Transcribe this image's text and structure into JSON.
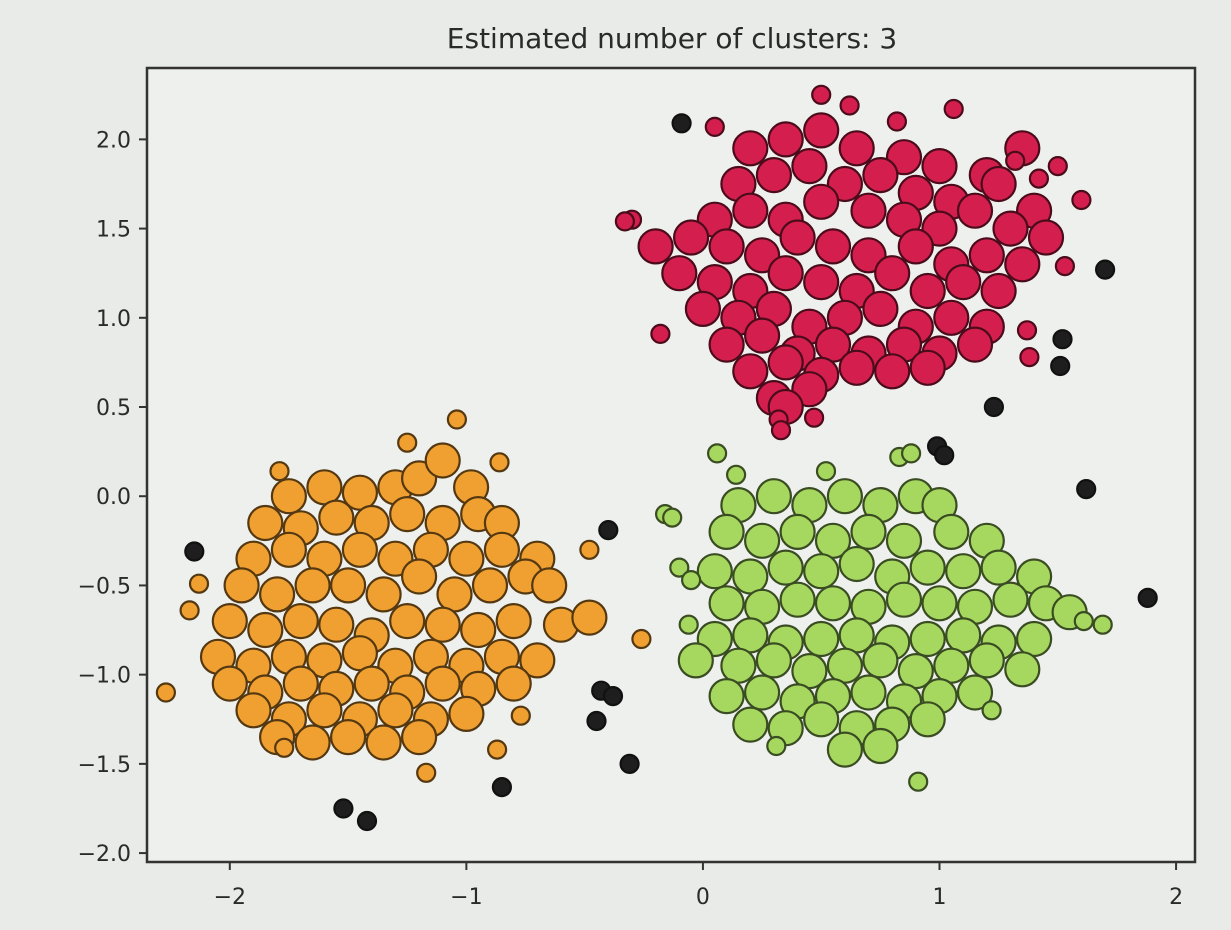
{
  "chart_data": {
    "type": "scatter",
    "title": "Estimated number of clusters: 3",
    "xlabel": "",
    "ylabel": "",
    "xlim": [
      -2.35,
      2.08
    ],
    "ylim": [
      -2.05,
      2.4
    ],
    "grid": false,
    "x_ticks": [
      -2,
      -1,
      0,
      1,
      2
    ],
    "x_tick_labels": [
      "−2",
      "−1",
      "0",
      "1",
      "2"
    ],
    "y_ticks": [
      -2.0,
      -1.5,
      -1.0,
      -0.5,
      0.0,
      0.5,
      1.0,
      1.5,
      2.0
    ],
    "y_tick_labels": [
      "−2.0",
      "−1.5",
      "−1.0",
      "−0.5",
      "0.0",
      "0.5",
      "1.0",
      "1.5",
      "2.0"
    ],
    "series": [
      {
        "color": "#d41f4e",
        "marker_size": "large",
        "points": [
          [
            0.2,
            1.95
          ],
          [
            0.35,
            2.0
          ],
          [
            0.5,
            2.05
          ],
          [
            0.65,
            1.95
          ],
          [
            0.85,
            1.9
          ],
          [
            1.0,
            1.85
          ],
          [
            1.2,
            1.8
          ],
          [
            1.35,
            1.95
          ],
          [
            0.15,
            1.75
          ],
          [
            0.3,
            1.8
          ],
          [
            0.45,
            1.85
          ],
          [
            0.6,
            1.75
          ],
          [
            0.75,
            1.8
          ],
          [
            0.9,
            1.7
          ],
          [
            1.05,
            1.65
          ],
          [
            1.25,
            1.75
          ],
          [
            1.4,
            1.6
          ],
          [
            0.05,
            1.55
          ],
          [
            0.2,
            1.6
          ],
          [
            0.35,
            1.55
          ],
          [
            0.5,
            1.65
          ],
          [
            0.7,
            1.6
          ],
          [
            0.85,
            1.55
          ],
          [
            1.0,
            1.5
          ],
          [
            1.15,
            1.6
          ],
          [
            1.3,
            1.5
          ],
          [
            1.45,
            1.45
          ],
          [
            -0.2,
            1.4
          ],
          [
            -0.05,
            1.45
          ],
          [
            0.1,
            1.4
          ],
          [
            0.25,
            1.35
          ],
          [
            0.4,
            1.45
          ],
          [
            0.55,
            1.4
          ],
          [
            0.7,
            1.35
          ],
          [
            0.9,
            1.4
          ],
          [
            1.05,
            1.3
          ],
          [
            1.2,
            1.35
          ],
          [
            1.35,
            1.3
          ],
          [
            -0.1,
            1.25
          ],
          [
            0.05,
            1.2
          ],
          [
            0.2,
            1.15
          ],
          [
            0.35,
            1.25
          ],
          [
            0.5,
            1.2
          ],
          [
            0.65,
            1.15
          ],
          [
            0.8,
            1.25
          ],
          [
            0.95,
            1.15
          ],
          [
            1.1,
            1.2
          ],
          [
            1.25,
            1.15
          ],
          [
            0.0,
            1.05
          ],
          [
            0.15,
            1.0
          ],
          [
            0.3,
            1.05
          ],
          [
            0.45,
            0.95
          ],
          [
            0.6,
            1.0
          ],
          [
            0.75,
            1.05
          ],
          [
            0.9,
            0.95
          ],
          [
            1.05,
            1.0
          ],
          [
            1.2,
            0.95
          ],
          [
            0.1,
            0.85
          ],
          [
            0.25,
            0.9
          ],
          [
            0.4,
            0.8
          ],
          [
            0.55,
            0.85
          ],
          [
            0.7,
            0.8
          ],
          [
            0.85,
            0.85
          ],
          [
            1.0,
            0.8
          ],
          [
            1.15,
            0.85
          ],
          [
            0.2,
            0.7
          ],
          [
            0.35,
            0.75
          ],
          [
            0.5,
            0.68
          ],
          [
            0.65,
            0.72
          ],
          [
            0.8,
            0.7
          ],
          [
            0.95,
            0.72
          ],
          [
            0.3,
            0.55
          ],
          [
            0.45,
            0.6
          ],
          [
            0.35,
            0.5
          ]
        ]
      },
      {
        "color": "#d41f4e",
        "marker_size": "small",
        "points": [
          [
            0.05,
            2.07
          ],
          [
            0.5,
            2.25
          ],
          [
            0.62,
            2.19
          ],
          [
            0.82,
            2.1
          ],
          [
            1.06,
            2.17
          ],
          [
            1.32,
            1.88
          ],
          [
            1.5,
            1.85
          ],
          [
            1.42,
            1.78
          ],
          [
            -0.3,
            1.55
          ],
          [
            -0.33,
            1.54
          ],
          [
            1.6,
            1.66
          ],
          [
            1.53,
            1.29
          ],
          [
            -0.18,
            0.91
          ],
          [
            1.37,
            0.93
          ],
          [
            1.38,
            0.78
          ],
          [
            0.47,
            0.44
          ],
          [
            0.32,
            0.43
          ],
          [
            0.33,
            0.37
          ]
        ]
      },
      {
        "color": "#f0a030",
        "marker_size": "large",
        "points": [
          [
            -1.75,
            0.0
          ],
          [
            -1.6,
            0.05
          ],
          [
            -1.45,
            0.02
          ],
          [
            -1.3,
            0.05
          ],
          [
            -1.2,
            0.1
          ],
          [
            -1.1,
            0.2
          ],
          [
            -0.98,
            0.05
          ],
          [
            -1.85,
            -0.15
          ],
          [
            -1.7,
            -0.18
          ],
          [
            -1.55,
            -0.12
          ],
          [
            -1.4,
            -0.15
          ],
          [
            -1.25,
            -0.1
          ],
          [
            -1.1,
            -0.15
          ],
          [
            -0.95,
            -0.1
          ],
          [
            -0.85,
            -0.15
          ],
          [
            -1.9,
            -0.35
          ],
          [
            -1.75,
            -0.3
          ],
          [
            -1.6,
            -0.35
          ],
          [
            -1.45,
            -0.3
          ],
          [
            -1.3,
            -0.35
          ],
          [
            -1.15,
            -0.3
          ],
          [
            -1.0,
            -0.35
          ],
          [
            -0.85,
            -0.3
          ],
          [
            -0.7,
            -0.35
          ],
          [
            -1.95,
            -0.5
          ],
          [
            -1.8,
            -0.55
          ],
          [
            -1.65,
            -0.5
          ],
          [
            -1.5,
            -0.5
          ],
          [
            -1.35,
            -0.55
          ],
          [
            -1.2,
            -0.45
          ],
          [
            -1.05,
            -0.55
          ],
          [
            -0.9,
            -0.5
          ],
          [
            -0.75,
            -0.45
          ],
          [
            -0.65,
            -0.5
          ],
          [
            -2.0,
            -0.7
          ],
          [
            -1.85,
            -0.75
          ],
          [
            -1.7,
            -0.7
          ],
          [
            -1.55,
            -0.72
          ],
          [
            -1.4,
            -0.78
          ],
          [
            -1.25,
            -0.7
          ],
          [
            -1.1,
            -0.72
          ],
          [
            -0.95,
            -0.75
          ],
          [
            -0.8,
            -0.7
          ],
          [
            -0.6,
            -0.72
          ],
          [
            -0.48,
            -0.68
          ],
          [
            -2.05,
            -0.9
          ],
          [
            -1.9,
            -0.95
          ],
          [
            -1.75,
            -0.9
          ],
          [
            -1.6,
            -0.92
          ],
          [
            -1.45,
            -0.88
          ],
          [
            -1.3,
            -0.95
          ],
          [
            -1.15,
            -0.9
          ],
          [
            -1.0,
            -0.95
          ],
          [
            -0.85,
            -0.9
          ],
          [
            -0.7,
            -0.92
          ],
          [
            -2.0,
            -1.05
          ],
          [
            -1.85,
            -1.1
          ],
          [
            -1.7,
            -1.05
          ],
          [
            -1.55,
            -1.08
          ],
          [
            -1.4,
            -1.05
          ],
          [
            -1.25,
            -1.1
          ],
          [
            -1.1,
            -1.05
          ],
          [
            -0.95,
            -1.08
          ],
          [
            -0.8,
            -1.05
          ],
          [
            -1.9,
            -1.2
          ],
          [
            -1.75,
            -1.25
          ],
          [
            -1.6,
            -1.2
          ],
          [
            -1.45,
            -1.25
          ],
          [
            -1.3,
            -1.2
          ],
          [
            -1.15,
            -1.25
          ],
          [
            -1.0,
            -1.22
          ],
          [
            -1.8,
            -1.35
          ],
          [
            -1.65,
            -1.38
          ],
          [
            -1.5,
            -1.35
          ],
          [
            -1.35,
            -1.38
          ],
          [
            -1.2,
            -1.35
          ]
        ]
      },
      {
        "color": "#f0a030",
        "marker_size": "small",
        "points": [
          [
            -1.79,
            0.14
          ],
          [
            -1.04,
            0.43
          ],
          [
            -1.25,
            0.3
          ],
          [
            -0.86,
            0.19
          ],
          [
            -0.48,
            -0.3
          ],
          [
            -2.13,
            -0.49
          ],
          [
            -2.17,
            -0.64
          ],
          [
            -0.26,
            -0.8
          ],
          [
            -2.27,
            -1.1
          ],
          [
            -0.77,
            -1.23
          ],
          [
            -1.77,
            -1.41
          ],
          [
            -0.87,
            -1.42
          ],
          [
            -1.17,
            -1.55
          ]
        ]
      },
      {
        "color": "#a6d860",
        "marker_size": "large",
        "points": [
          [
            0.15,
            -0.05
          ],
          [
            0.3,
            0.0
          ],
          [
            0.45,
            -0.05
          ],
          [
            0.6,
            0.0
          ],
          [
            0.75,
            -0.05
          ],
          [
            0.9,
            0.0
          ],
          [
            1.0,
            -0.05
          ],
          [
            0.1,
            -0.2
          ],
          [
            0.25,
            -0.25
          ],
          [
            0.4,
            -0.2
          ],
          [
            0.55,
            -0.25
          ],
          [
            0.7,
            -0.2
          ],
          [
            0.85,
            -0.25
          ],
          [
            1.05,
            -0.2
          ],
          [
            1.2,
            -0.25
          ],
          [
            0.05,
            -0.42
          ],
          [
            0.2,
            -0.45
          ],
          [
            0.35,
            -0.4
          ],
          [
            0.5,
            -0.42
          ],
          [
            0.65,
            -0.38
          ],
          [
            0.8,
            -0.45
          ],
          [
            0.95,
            -0.4
          ],
          [
            1.1,
            -0.42
          ],
          [
            1.25,
            -0.4
          ],
          [
            1.4,
            -0.45
          ],
          [
            0.1,
            -0.6
          ],
          [
            0.25,
            -0.62
          ],
          [
            0.4,
            -0.58
          ],
          [
            0.55,
            -0.6
          ],
          [
            0.7,
            -0.62
          ],
          [
            0.85,
            -0.58
          ],
          [
            1.0,
            -0.6
          ],
          [
            1.15,
            -0.62
          ],
          [
            1.3,
            -0.58
          ],
          [
            1.45,
            -0.6
          ],
          [
            1.55,
            -0.65
          ],
          [
            0.05,
            -0.8
          ],
          [
            0.2,
            -0.78
          ],
          [
            0.35,
            -0.82
          ],
          [
            0.5,
            -0.8
          ],
          [
            0.65,
            -0.78
          ],
          [
            0.8,
            -0.82
          ],
          [
            0.95,
            -0.8
          ],
          [
            1.1,
            -0.78
          ],
          [
            1.25,
            -0.82
          ],
          [
            1.4,
            -0.8
          ],
          [
            -0.03,
            -0.92
          ],
          [
            0.15,
            -0.95
          ],
          [
            0.3,
            -0.92
          ],
          [
            0.45,
            -0.98
          ],
          [
            0.6,
            -0.95
          ],
          [
            0.75,
            -0.92
          ],
          [
            0.9,
            -0.98
          ],
          [
            1.05,
            -0.95
          ],
          [
            1.2,
            -0.92
          ],
          [
            1.35,
            -0.97
          ],
          [
            0.1,
            -1.12
          ],
          [
            0.25,
            -1.1
          ],
          [
            0.4,
            -1.15
          ],
          [
            0.55,
            -1.12
          ],
          [
            0.7,
            -1.1
          ],
          [
            0.85,
            -1.15
          ],
          [
            1.0,
            -1.12
          ],
          [
            1.15,
            -1.1
          ],
          [
            0.2,
            -1.28
          ],
          [
            0.35,
            -1.3
          ],
          [
            0.5,
            -1.25
          ],
          [
            0.65,
            -1.3
          ],
          [
            0.8,
            -1.28
          ],
          [
            0.95,
            -1.25
          ],
          [
            0.6,
            -1.42
          ],
          [
            0.75,
            -1.4
          ]
        ]
      },
      {
        "color": "#a6d860",
        "marker_size": "small",
        "points": [
          [
            0.06,
            0.24
          ],
          [
            0.14,
            0.12
          ],
          [
            0.52,
            0.14
          ],
          [
            0.83,
            0.22
          ],
          [
            0.88,
            0.24
          ],
          [
            -0.16,
            -0.1
          ],
          [
            -0.13,
            -0.12
          ],
          [
            -0.1,
            -0.4
          ],
          [
            -0.05,
            -0.47
          ],
          [
            -0.06,
            -0.72
          ],
          [
            1.69,
            -0.72
          ],
          [
            1.61,
            -0.7
          ],
          [
            1.22,
            -1.2
          ],
          [
            0.31,
            -1.4
          ],
          [
            0.91,
            -1.6
          ]
        ]
      },
      {
        "color": "#1e1e1e",
        "marker_size": "small",
        "points": [
          [
            -0.09,
            2.09
          ],
          [
            1.7,
            1.27
          ],
          [
            1.52,
            0.88
          ],
          [
            1.51,
            0.73
          ],
          [
            1.23,
            0.5
          ],
          [
            0.99,
            0.28
          ],
          [
            1.02,
            0.23
          ],
          [
            1.62,
            0.04
          ],
          [
            1.88,
            -0.57
          ],
          [
            -0.4,
            -0.19
          ],
          [
            -2.15,
            -0.31
          ],
          [
            -0.43,
            -1.09
          ],
          [
            -0.38,
            -1.12
          ],
          [
            -0.45,
            -1.26
          ],
          [
            -0.31,
            -1.5
          ],
          [
            -0.85,
            -1.63
          ],
          [
            -1.52,
            -1.75
          ],
          [
            -1.42,
            -1.82
          ]
        ]
      }
    ]
  }
}
